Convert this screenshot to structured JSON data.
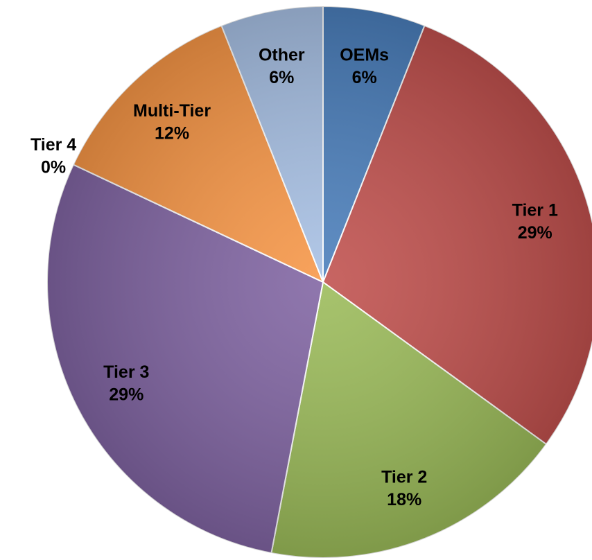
{
  "chart_data": {
    "type": "pie",
    "categories": [
      "OEMs",
      "Tier 1",
      "Tier 2",
      "Tier 3",
      "Tier 4",
      "Multi-Tier",
      "Other"
    ],
    "values": [
      6,
      29,
      18,
      29,
      0,
      12,
      6
    ],
    "value_labels": [
      "6%",
      "29%",
      "18%",
      "29%",
      "0%",
      "12%",
      "6%"
    ],
    "colors": [
      "#4a7ebb",
      "#c0504d",
      "#9bbb59",
      "#8064a2",
      "#4bacc6",
      "#f79646",
      "#a7c0e4"
    ]
  }
}
